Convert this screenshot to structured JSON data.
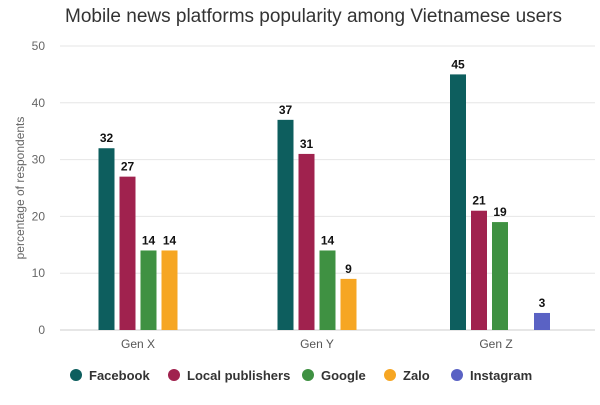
{
  "chart_data": {
    "type": "bar",
    "title": "Mobile news platforms popularity among Vietnamese users",
    "ylabel": "percentage of respondents",
    "xlabel": "",
    "ylim": [
      0,
      50
    ],
    "yticks": [
      0,
      10,
      20,
      30,
      40,
      50
    ],
    "grid": true,
    "legend_position": "bottom",
    "categories": [
      "Gen X",
      "Gen Y",
      "Gen Z"
    ],
    "series": [
      {
        "name": "Facebook",
        "color": "#0d5e5e",
        "values": [
          32,
          37,
          45
        ]
      },
      {
        "name": "Local publishers",
        "color": "#a0224e",
        "values": [
          27,
          31,
          21
        ]
      },
      {
        "name": "Google",
        "color": "#3f9142",
        "values": [
          14,
          14,
          19
        ]
      },
      {
        "name": "Zalo",
        "color": "#f6a623",
        "values": [
          14,
          9,
          null
        ]
      },
      {
        "name": "Instagram",
        "color": "#5a62c4",
        "values": [
          null,
          null,
          3
        ]
      }
    ]
  }
}
